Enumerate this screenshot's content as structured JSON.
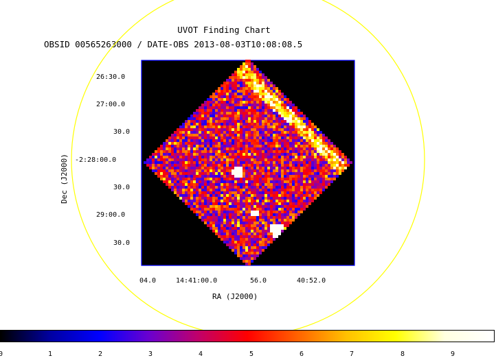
{
  "title": "UVOT Finding Chart",
  "subtitle": "OBSID 00565263000 / DATE-OBS 2013-08-03T10:08:08.5",
  "axes": {
    "xlabel": "RA (J2000)",
    "ylabel": "Dec (J2000)",
    "ra_ticks": [
      "04.0",
      "14:41:00.0",
      "56.0",
      "40:52.0"
    ],
    "dec_ticks": [
      "26:30.0",
      "27:00.0",
      "30.0",
      "-2:28:00.0",
      "30.0",
      "29:00.0",
      "30.0"
    ]
  },
  "colorbar": {
    "ticks": [
      "0",
      "1",
      "2",
      "3",
      "4",
      "5",
      "6",
      "7",
      "8",
      "9"
    ],
    "colormap": [
      "#000000",
      "#0000a0",
      "#0000ff",
      "#6a00d0",
      "#c0006a",
      "#ff0000",
      "#ff6000",
      "#ffc000",
      "#ffff00",
      "#ffffe0",
      "#ffffff"
    ]
  },
  "colors": {
    "circle": "#ffff00",
    "frame": "#0000ff"
  }
}
